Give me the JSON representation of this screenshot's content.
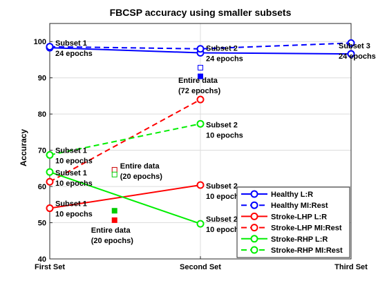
{
  "chart_data": {
    "type": "line",
    "title": "FBCSP accuracy using smaller subsets",
    "xlabel": "",
    "ylabel": "Accuracy",
    "categories": [
      "First Set",
      "Second Set",
      "Third Set"
    ],
    "ylim": [
      40,
      105
    ],
    "yticks": [
      40,
      50,
      60,
      70,
      80,
      90,
      100
    ],
    "grid": true,
    "legend_position": "bottom-right",
    "series": [
      {
        "name": "Healthy L:R",
        "color": "#0000ff",
        "dash": "solid",
        "values": [
          98.3,
          96.9,
          96.6
        ]
      },
      {
        "name": "Healthy MI:Rest",
        "color": "#0000ff",
        "dash": "dashed",
        "values": [
          98.6,
          98.0,
          99.6
        ]
      },
      {
        "name": "Stroke-LHP L:R",
        "color": "#ff0000",
        "dash": "solid",
        "values": [
          54.0,
          60.4,
          null
        ]
      },
      {
        "name": "Stroke-LHP MI:Rest",
        "color": "#ff0000",
        "dash": "dashed",
        "values": [
          61.3,
          84.0,
          null
        ]
      },
      {
        "name": "Stroke-RHP L:R",
        "color": "#00ee00",
        "dash": "solid",
        "values": [
          64.0,
          49.7,
          null
        ]
      },
      {
        "name": "Stroke-RHP MI:Rest",
        "color": "#00ee00",
        "dash": "dashed",
        "values": [
          68.7,
          77.3,
          null
        ]
      }
    ],
    "markers": [
      {
        "name": "Healthy MI:Rest entire data",
        "color": "#0000ff",
        "filled": false,
        "x": 1.0,
        "y": 92.8
      },
      {
        "name": "Healthy L:R entire data",
        "color": "#0000ff",
        "filled": true,
        "x": 1.0,
        "y": 90.4
      },
      {
        "name": "Stroke-LHP MI:Rest 20 epochs",
        "color": "#cc0000",
        "filled": false,
        "x": 0.43,
        "y": 64.6
      },
      {
        "name": "Stroke-RHP MI:Rest 20 epochs",
        "color": "#00cc00",
        "filled": false,
        "x": 0.43,
        "y": 63.3
      },
      {
        "name": "Stroke-RHP L:R 20 epochs",
        "color": "#00cc00",
        "filled": true,
        "x": 0.43,
        "y": 53.3
      },
      {
        "name": "Stroke-LHP L:R 20 epochs",
        "color": "#ff0000",
        "filled": true,
        "x": 0.43,
        "y": 50.7
      }
    ],
    "annotations": [
      {
        "lines": [
          "Subset 1",
          "24 epochs"
        ],
        "x": 0.0,
        "y": 98.3,
        "anchor": "right-up"
      },
      {
        "lines": [
          "Subset 2",
          "24 epochs"
        ],
        "x": 1.0,
        "y": 96.9,
        "anchor": "right-up"
      },
      {
        "lines": [
          "Subset 3",
          "24 epochs"
        ],
        "x": 2.0,
        "y": 96.6,
        "anchor": "inside-right"
      },
      {
        "lines": [
          "Entire data",
          "(72 epochs)"
        ],
        "x": 1.0,
        "y": 84.0,
        "anchor": "left-above"
      },
      {
        "lines": [
          "Subset 2",
          "10 epochs"
        ],
        "x": 1.0,
        "y": 77.3,
        "anchor": "right"
      },
      {
        "lines": [
          "Subset 1",
          "10 epochs"
        ],
        "x": 0.0,
        "y": 68.7,
        "anchor": "right-up"
      },
      {
        "lines": [
          "Subset 1",
          "10 epochs"
        ],
        "x": 0.0,
        "y": 64.0,
        "anchor": "right"
      },
      {
        "lines": [
          "Entire data",
          "(20 epochs)"
        ],
        "x": 0.43,
        "y": 64.6,
        "anchor": "marker-right"
      },
      {
        "lines": [
          "Subset 2",
          "10 epochs"
        ],
        "x": 1.0,
        "y": 60.4,
        "anchor": "right"
      },
      {
        "lines": [
          "Subset 1",
          "10 epochs"
        ],
        "x": 0.0,
        "y": 54.0,
        "anchor": "right-up"
      },
      {
        "lines": [
          "Subset 2",
          "10 epochs"
        ],
        "x": 1.0,
        "y": 49.7,
        "anchor": "right-up"
      },
      {
        "lines": [
          "Entire data",
          "(20 epochs)"
        ],
        "x": 0.43,
        "y": 50.7,
        "anchor": "below"
      }
    ]
  }
}
